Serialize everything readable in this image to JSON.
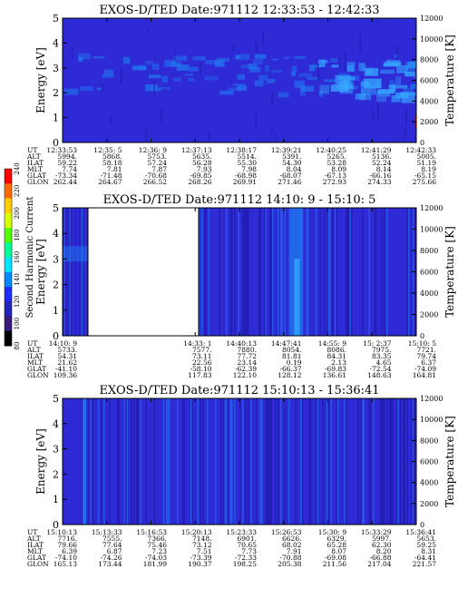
{
  "colors": {
    "background_field": "#2e2ad6",
    "bright_band": "#1f7cf0",
    "dark_band": "#1e1aa8",
    "highlight": "#35a8ff",
    "no_data": "#ffffff",
    "accent_red": "#c00000"
  },
  "colorbar": {
    "label": "Second Harmonic Current",
    "ticks": [
      "80",
      "100",
      "120",
      "140",
      "160",
      "180",
      "200",
      "220",
      "240"
    ]
  },
  "row_labels": [
    "UT",
    "ALT",
    "ILAT",
    "MLT",
    "GLAT",
    "GLON"
  ],
  "chart_data": [
    {
      "type": "heatmap",
      "title": "EXOS-D/TED   Date:971112   12:33:53 - 12:42:33",
      "ylabel": "Energy [eV]",
      "y2label": "Temperature [K]",
      "ylim": [
        0,
        5
      ],
      "y2lim": [
        0,
        12000
      ],
      "yticks": [
        "0",
        "1",
        "2",
        "3",
        "4",
        "5"
      ],
      "y2ticks": [
        "0",
        "2000",
        "4000",
        "6000",
        "8000",
        "10000",
        "12000"
      ],
      "columns": [
        {
          "UT": "12:33:53",
          "ALT": "5994.",
          "ILAT": "59.22",
          "MLT": "7.74",
          "GLAT": "-73.34",
          "GLON": "262.44"
        },
        {
          "UT": "12:35: 5",
          "ALT": "5868.",
          "ILAT": "58.18",
          "MLT": "7.81",
          "GLAT": "-71.48",
          "GLON": "264.67"
        },
        {
          "UT": "12:36: 9",
          "ALT": "5753.",
          "ILAT": "57.24",
          "MLT": "7.87",
          "GLAT": "-70.68",
          "GLON": "266.52"
        },
        {
          "UT": "12:37:13",
          "ALT": "5635.",
          "ILAT": "56.28",
          "MLT": "7.93",
          "GLAT": "-69.85",
          "GLON": "268.26"
        },
        {
          "UT": "12:38:17",
          "ALT": "5514.",
          "ILAT": "55.30",
          "MLT": "7.98",
          "GLAT": "-68.98",
          "GLON": "269.91"
        },
        {
          "UT": "12:39:21",
          "ALT": "5391.",
          "ILAT": "54.30",
          "MLT": "8.04",
          "GLAT": "-68.07",
          "GLON": "271.46"
        },
        {
          "UT": "12:40:25",
          "ALT": "5265.",
          "ILAT": "53.28",
          "MLT": "8.09",
          "GLAT": "-67.13",
          "GLON": "272.93"
        },
        {
          "UT": "12:41:29",
          "ALT": "5136.",
          "ILAT": "52.24",
          "MLT": "8.14",
          "GLAT": "-66.16",
          "GLON": "274.33"
        },
        {
          "UT": "12:42:33",
          "ALT": "5005.",
          "ILAT": "51.19",
          "MLT": "8.19",
          "GLAT": "-65.15",
          "GLON": "275.66"
        }
      ]
    },
    {
      "type": "heatmap",
      "title": "EXOS-D/TED   Date:971112   14:10: 9 - 15:10: 5",
      "ylabel": "Energy [eV]",
      "y2label": "Temperature [K]",
      "ylim": [
        0,
        5
      ],
      "y2lim": [
        0,
        12000
      ],
      "yticks": [
        "0",
        "1",
        "2",
        "3",
        "4",
        "5"
      ],
      "y2ticks": [
        "0",
        "2000",
        "4000",
        "6000",
        "8000",
        "10000",
        "12000"
      ],
      "data_gap": [
        "14:12",
        "14:33"
      ],
      "columns": [
        {
          "UT": "14:10: 9",
          "ALT": "5733.",
          "ILAT": "54.31",
          "MLT": "21.62",
          "GLAT": "-41.10",
          "GLON": "109.36"
        },
        {
          "UT": "",
          "ALT": "",
          "ILAT": "",
          "MLT": "",
          "GLAT": "",
          "GLON": ""
        },
        {
          "UT": "",
          "ALT": "",
          "ILAT": "",
          "MLT": "",
          "GLAT": "",
          "GLON": ""
        },
        {
          "UT": "14:33: 1",
          "ALT": "7577.",
          "ILAT": "73.11",
          "MLT": "22.56",
          "GLAT": "-58.10",
          "GLON": "117.83"
        },
        {
          "UT": "14:40:13",
          "ALT": "7880.",
          "ILAT": "77.72",
          "MLT": "23.14",
          "GLAT": "-62.39",
          "GLON": "122.10"
        },
        {
          "UT": "14:47:41",
          "ALT": "8054.",
          "ILAT": "81.81",
          "MLT": "0.19",
          "GLAT": "-66.37",
          "GLON": "128.12"
        },
        {
          "UT": "14:55: 9",
          "ALT": "8086.",
          "ILAT": "84.31",
          "MLT": "2.13",
          "GLAT": "-69.83",
          "GLON": "136.61"
        },
        {
          "UT": "15: 2:37",
          "ALT": "7975.",
          "ILAT": "83.35",
          "MLT": "4.65",
          "GLAT": "-72.54",
          "GLON": "148.63"
        },
        {
          "UT": "15:10: 5",
          "ALT": "7721.",
          "ILAT": "79.74",
          "MLT": "6.37",
          "GLAT": "-74.09",
          "GLON": "164.81"
        }
      ]
    },
    {
      "type": "heatmap",
      "title": "EXOS-D/TED   Date:971112   15:10:13 - 15:36:41",
      "ylabel": "Energy [eV]",
      "y2label": "Temperature [K]",
      "ylim": [
        0,
        5
      ],
      "y2lim": [
        0,
        12000
      ],
      "yticks": [
        "0",
        "1",
        "2",
        "3",
        "4",
        "5"
      ],
      "y2ticks": [
        "0",
        "2000",
        "4000",
        "6000",
        "8000",
        "10000",
        "12000"
      ],
      "columns": [
        {
          "UT": "15:10:13",
          "ALT": "7716.",
          "ILAT": "79.66",
          "MLT": "6.39",
          "GLAT": "-74.10",
          "GLON": "165.13"
        },
        {
          "UT": "15:13:33",
          "ALT": "7555.",
          "ILAT": "77.64",
          "MLT": "6.87",
          "GLAT": "-74.26",
          "GLON": "173.44"
        },
        {
          "UT": "15:16:53",
          "ALT": "7366.",
          "ILAT": "75.46",
          "MLT": "7.23",
          "GLAT": "-74.03",
          "GLON": "181.99"
        },
        {
          "UT": "15:20:13",
          "ALT": "7148.",
          "ILAT": "73.12",
          "MLT": "7.51",
          "GLAT": "-73.39",
          "GLON": "190.37"
        },
        {
          "UT": "15:23:33",
          "ALT": "6901.",
          "ILAT": "70.65",
          "MLT": "7.73",
          "GLAT": "-72.33",
          "GLON": "198.25"
        },
        {
          "UT": "15:26:53",
          "ALT": "6626.",
          "ILAT": "68.02",
          "MLT": "7.91",
          "GLAT": "-70.88",
          "GLON": "205.38"
        },
        {
          "UT": "15:30: 9",
          "ALT": "6329.",
          "ILAT": "65.28",
          "MLT": "8.07",
          "GLAT": "-69.08",
          "GLON": "211.56"
        },
        {
          "UT": "15:33:29",
          "ALT": "5997.",
          "ILAT": "62.30",
          "MLT": "8.20",
          "GLAT": "-66.88",
          "GLON": "217.04"
        },
        {
          "UT": "15:36:41",
          "ALT": "5653.",
          "ILAT": "59.25",
          "MLT": "8.31",
          "GLAT": "-64.41",
          "GLON": "221.57"
        }
      ]
    }
  ]
}
